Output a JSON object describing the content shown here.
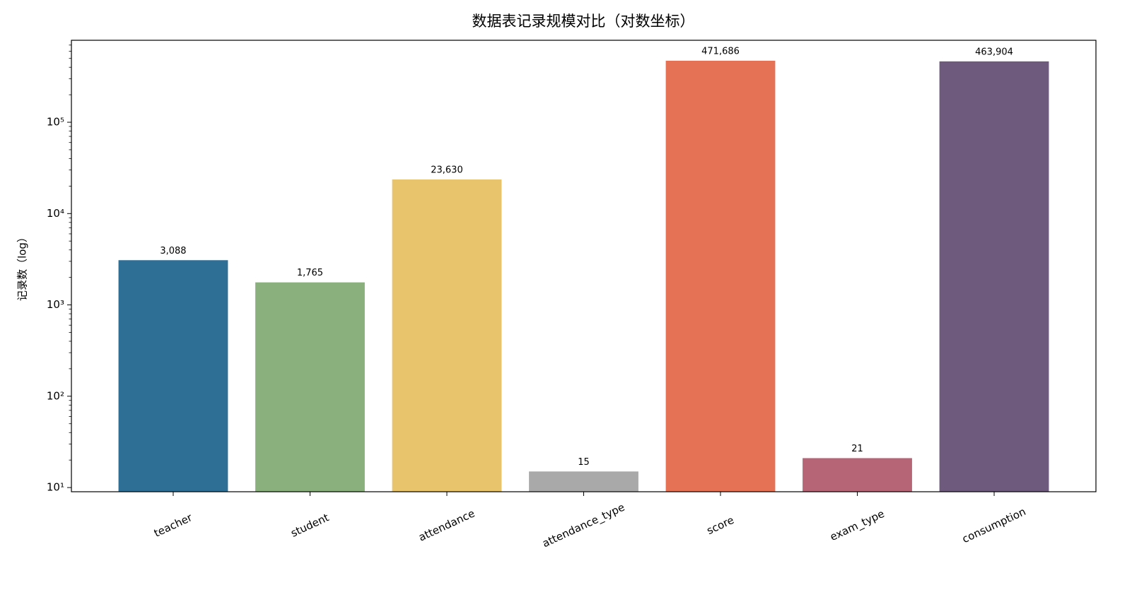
{
  "chart_data": {
    "type": "bar",
    "title": "数据表记录规模对比（对数坐标）",
    "y_label": "记录数（log）",
    "categories": [
      "teacher",
      "student",
      "attendance",
      "attendance_type",
      "score",
      "exam_type",
      "consumption"
    ],
    "values": [
      3088,
      1765,
      23630,
      15,
      471686,
      21,
      463904
    ],
    "value_labels": [
      "3,088",
      "1,765",
      "23,630",
      "15",
      "471,686",
      "21",
      "463,904"
    ],
    "colors": [
      "#2e6f96",
      "#8ab07d",
      "#e8c46c",
      "#a9a9a9",
      "#e57254",
      "#b56576",
      "#6d5a7c"
    ],
    "yscale": "log",
    "ylim": [
      9,
      790000
    ],
    "yticks": [
      {
        "value": 10,
        "label": "10¹"
      },
      {
        "value": 100,
        "label": "10²"
      },
      {
        "value": 1000,
        "label": "10³"
      },
      {
        "value": 10000,
        "label": "10⁴"
      },
      {
        "value": 100000,
        "label": "10⁵"
      }
    ],
    "yminorticks": [
      20,
      30,
      40,
      50,
      60,
      70,
      80,
      90,
      200,
      300,
      400,
      500,
      600,
      700,
      800,
      900,
      2000,
      3000,
      4000,
      5000,
      6000,
      7000,
      8000,
      9000,
      20000,
      30000,
      40000,
      50000,
      60000,
      70000,
      80000,
      90000,
      200000,
      300000,
      400000,
      500000,
      600000,
      700000
    ],
    "grid": false
  }
}
